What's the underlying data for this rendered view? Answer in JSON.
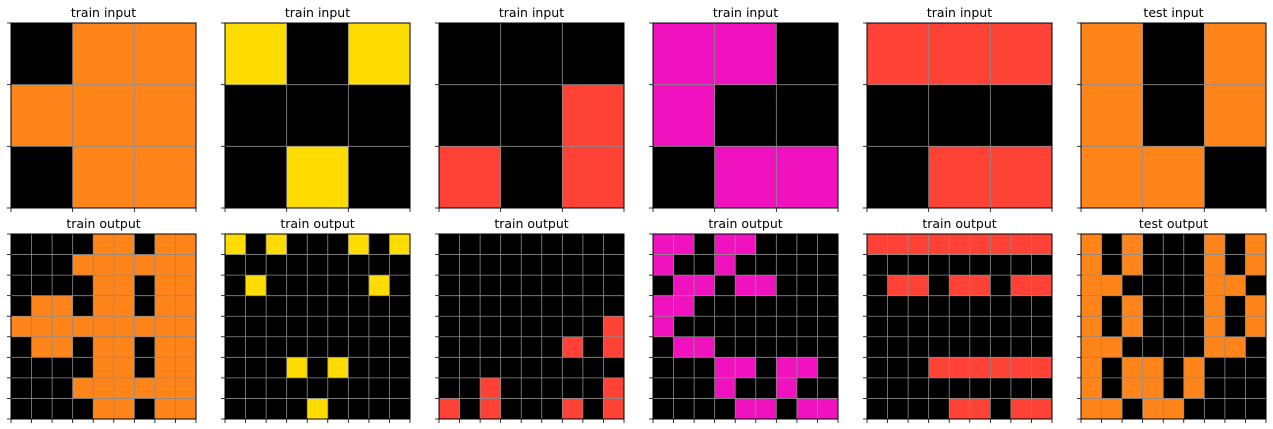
{
  "colors": {
    "0": "#000000",
    "2": "#ff4136",
    "4": "#ffdc00",
    "6": "#f012be",
    "7": "#ff851b",
    "grid": "#8c8c8c"
  },
  "panels": [
    {
      "title": "train input",
      "grid": [
        [
          0,
          7,
          7
        ],
        [
          7,
          7,
          7
        ],
        [
          0,
          7,
          7
        ]
      ]
    },
    {
      "title": "train input",
      "grid": [
        [
          4,
          0,
          4
        ],
        [
          0,
          0,
          0
        ],
        [
          0,
          4,
          0
        ]
      ]
    },
    {
      "title": "train input",
      "grid": [
        [
          0,
          0,
          0
        ],
        [
          0,
          0,
          2
        ],
        [
          2,
          0,
          2
        ]
      ]
    },
    {
      "title": "train input",
      "grid": [
        [
          6,
          6,
          0
        ],
        [
          6,
          0,
          0
        ],
        [
          0,
          6,
          6
        ]
      ]
    },
    {
      "title": "train input",
      "grid": [
        [
          2,
          2,
          2
        ],
        [
          0,
          0,
          0
        ],
        [
          0,
          2,
          2
        ]
      ]
    },
    {
      "title": "test input",
      "grid": [
        [
          7,
          0,
          7
        ],
        [
          7,
          0,
          7
        ],
        [
          7,
          7,
          0
        ]
      ]
    },
    {
      "title": "train output",
      "grid": [
        [
          0,
          0,
          0,
          0,
          7,
          7,
          0,
          7,
          7
        ],
        [
          0,
          0,
          0,
          7,
          7,
          7,
          7,
          7,
          7
        ],
        [
          0,
          0,
          0,
          0,
          7,
          7,
          0,
          7,
          7
        ],
        [
          0,
          7,
          7,
          0,
          7,
          7,
          0,
          7,
          7
        ],
        [
          7,
          7,
          7,
          7,
          7,
          7,
          7,
          7,
          7
        ],
        [
          0,
          7,
          7,
          0,
          7,
          7,
          0,
          7,
          7
        ],
        [
          0,
          0,
          0,
          0,
          7,
          7,
          0,
          7,
          7
        ],
        [
          0,
          0,
          0,
          7,
          7,
          7,
          7,
          7,
          7
        ],
        [
          0,
          0,
          0,
          0,
          7,
          7,
          0,
          7,
          7
        ]
      ]
    },
    {
      "title": "train output",
      "grid": [
        [
          4,
          0,
          4,
          0,
          0,
          0,
          4,
          0,
          4
        ],
        [
          0,
          0,
          0,
          0,
          0,
          0,
          0,
          0,
          0
        ],
        [
          0,
          4,
          0,
          0,
          0,
          0,
          0,
          4,
          0
        ],
        [
          0,
          0,
          0,
          0,
          0,
          0,
          0,
          0,
          0
        ],
        [
          0,
          0,
          0,
          0,
          0,
          0,
          0,
          0,
          0
        ],
        [
          0,
          0,
          0,
          0,
          0,
          0,
          0,
          0,
          0
        ],
        [
          0,
          0,
          0,
          4,
          0,
          4,
          0,
          0,
          0
        ],
        [
          0,
          0,
          0,
          0,
          0,
          0,
          0,
          0,
          0
        ],
        [
          0,
          0,
          0,
          0,
          4,
          0,
          0,
          0,
          0
        ]
      ]
    },
    {
      "title": "train output",
      "grid": [
        [
          0,
          0,
          0,
          0,
          0,
          0,
          0,
          0,
          0
        ],
        [
          0,
          0,
          0,
          0,
          0,
          0,
          0,
          0,
          0
        ],
        [
          0,
          0,
          0,
          0,
          0,
          0,
          0,
          0,
          0
        ],
        [
          0,
          0,
          0,
          0,
          0,
          0,
          0,
          0,
          0
        ],
        [
          0,
          0,
          0,
          0,
          0,
          0,
          0,
          0,
          2
        ],
        [
          0,
          0,
          0,
          0,
          0,
          0,
          2,
          0,
          2
        ],
        [
          0,
          0,
          0,
          0,
          0,
          0,
          0,
          0,
          0
        ],
        [
          0,
          0,
          2,
          0,
          0,
          0,
          0,
          0,
          2
        ],
        [
          2,
          0,
          2,
          0,
          0,
          0,
          2,
          0,
          2
        ]
      ]
    },
    {
      "title": "train output",
      "grid": [
        [
          6,
          6,
          0,
          6,
          6,
          0,
          0,
          0,
          0
        ],
        [
          6,
          0,
          0,
          6,
          0,
          0,
          0,
          0,
          0
        ],
        [
          0,
          6,
          6,
          0,
          6,
          6,
          0,
          0,
          0
        ],
        [
          6,
          6,
          0,
          0,
          0,
          0,
          0,
          0,
          0
        ],
        [
          6,
          0,
          0,
          0,
          0,
          0,
          0,
          0,
          0
        ],
        [
          0,
          6,
          6,
          0,
          0,
          0,
          0,
          0,
          0
        ],
        [
          0,
          0,
          0,
          6,
          6,
          0,
          6,
          6,
          0
        ],
        [
          0,
          0,
          0,
          6,
          0,
          0,
          6,
          0,
          0
        ],
        [
          0,
          0,
          0,
          0,
          6,
          6,
          0,
          6,
          6
        ]
      ]
    },
    {
      "title": "train output",
      "grid": [
        [
          2,
          2,
          2,
          2,
          2,
          2,
          2,
          2,
          2
        ],
        [
          0,
          0,
          0,
          0,
          0,
          0,
          0,
          0,
          0
        ],
        [
          0,
          2,
          2,
          0,
          2,
          2,
          0,
          2,
          2
        ],
        [
          0,
          0,
          0,
          0,
          0,
          0,
          0,
          0,
          0
        ],
        [
          0,
          0,
          0,
          0,
          0,
          0,
          0,
          0,
          0
        ],
        [
          0,
          0,
          0,
          0,
          0,
          0,
          0,
          0,
          0
        ],
        [
          0,
          0,
          0,
          2,
          2,
          2,
          2,
          2,
          2
        ],
        [
          0,
          0,
          0,
          0,
          0,
          0,
          0,
          0,
          0
        ],
        [
          0,
          0,
          0,
          0,
          2,
          2,
          0,
          2,
          2
        ]
      ]
    },
    {
      "title": "test output",
      "grid": [
        [
          7,
          0,
          7,
          0,
          0,
          0,
          7,
          0,
          7
        ],
        [
          7,
          0,
          7,
          0,
          0,
          0,
          7,
          0,
          7
        ],
        [
          7,
          7,
          0,
          0,
          0,
          0,
          7,
          7,
          0
        ],
        [
          7,
          0,
          7,
          0,
          0,
          0,
          7,
          0,
          7
        ],
        [
          7,
          0,
          7,
          0,
          0,
          0,
          7,
          0,
          7
        ],
        [
          7,
          7,
          0,
          0,
          0,
          0,
          7,
          7,
          0
        ],
        [
          7,
          0,
          7,
          7,
          0,
          7,
          0,
          0,
          0
        ],
        [
          7,
          0,
          7,
          7,
          0,
          7,
          0,
          0,
          0
        ],
        [
          7,
          7,
          0,
          7,
          7,
          0,
          0,
          0,
          0
        ]
      ]
    }
  ]
}
